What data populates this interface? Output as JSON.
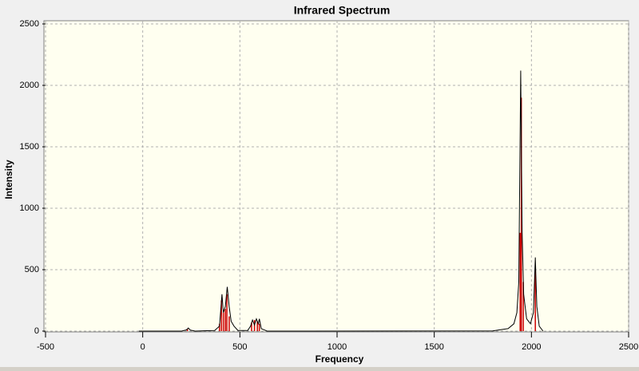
{
  "chart_data": {
    "type": "line",
    "title": "Infrared Spectrum",
    "x_label": "Frequency",
    "y_label": "Intensity",
    "x": [
      -20,
      200,
      225,
      235,
      245,
      270,
      370,
      395,
      408,
      415,
      425,
      435,
      445,
      455,
      470,
      490,
      540,
      555,
      565,
      575,
      585,
      595,
      600,
      610,
      640,
      1800,
      1880,
      1910,
      1925,
      1935,
      1945,
      1952,
      1960,
      1975,
      1995,
      2010,
      2020,
      2028,
      2040,
      2060
    ],
    "series": [
      {
        "color": "#000000",
        "values": [
          0,
          0,
          10,
          25,
          8,
          0,
          5,
          40,
          300,
          150,
          200,
          360,
          200,
          80,
          40,
          5,
          5,
          40,
          90,
          50,
          100,
          60,
          100,
          20,
          0,
          2,
          20,
          60,
          150,
          400,
          2120,
          800,
          300,
          100,
          60,
          150,
          600,
          200,
          40,
          0
        ]
      }
    ],
    "sticks": {
      "color": "#cc0000",
      "x": [
        230,
        395,
        405,
        415,
        425,
        433,
        445,
        560,
        575,
        590,
        600,
        1942,
        1948,
        1958,
        2020
      ],
      "values": [
        20,
        60,
        250,
        150,
        180,
        300,
        120,
        70,
        90,
        80,
        60,
        800,
        1900,
        400,
        500
      ]
    },
    "xlim": [
      -500,
      2500
    ],
    "xticks": [
      -500,
      0,
      500,
      1000,
      1500,
      2000,
      2500
    ],
    "ylim": [
      0,
      2500
    ],
    "yticks": [
      0,
      500,
      1000,
      1500,
      2000,
      2500
    ],
    "grid": true
  }
}
